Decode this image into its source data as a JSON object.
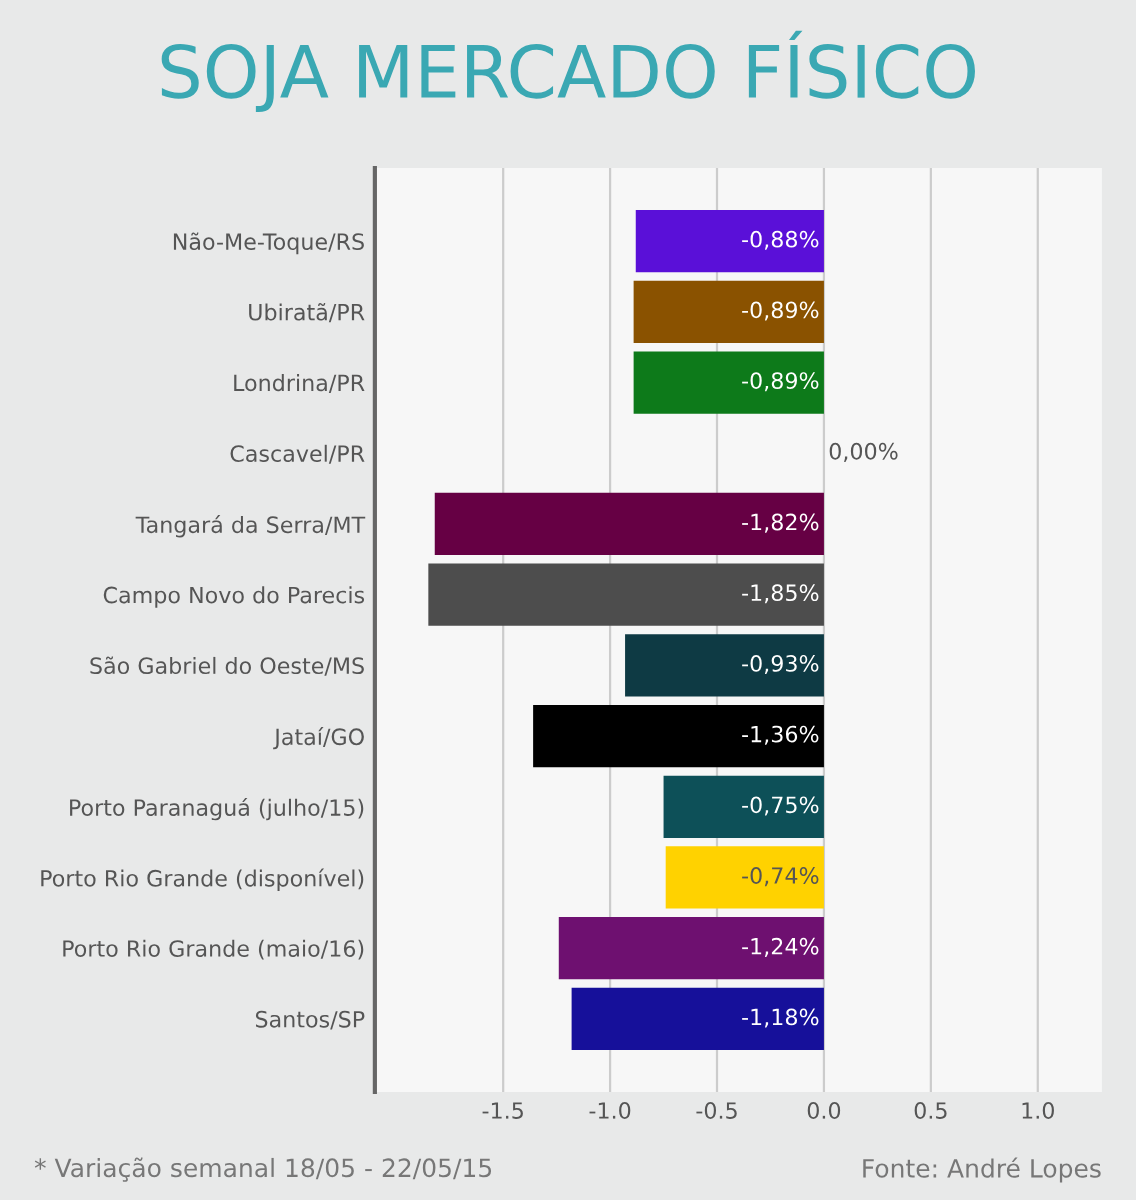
{
  "chart_data": {
    "type": "bar",
    "orientation": "horizontal",
    "title": "SOJA MERCADO FÍSICO",
    "categories": [
      "Não-Me-Toque/RS",
      "Ubiratã/PR",
      "Londrina/PR",
      "Cascavel/PR",
      "Tangará da Serra/MT",
      "Campo Novo do Parecis",
      "São Gabriel do Oeste/MS",
      "Jataí/GO",
      "Porto Paranaguá (julho/15)",
      "Porto Rio Grande (disponível)",
      "Porto Rio Grande (maio/16)",
      "Santos/SP"
    ],
    "values": [
      -0.88,
      -0.89,
      -0.89,
      0.0,
      -1.82,
      -1.85,
      -0.93,
      -1.36,
      -0.75,
      -0.74,
      -1.24,
      -1.18
    ],
    "value_labels": [
      "-0,88%",
      "-0,89%",
      "-0,89%",
      "0,00%",
      "-1,82%",
      "-1,85%",
      "-0,93%",
      "-1,36%",
      "-0,75%",
      "-0,74%",
      "-1,24%",
      "-1,18%"
    ],
    "colors": [
      "#5a10d8",
      "#8a5200",
      "#0d7a1a",
      "#888888",
      "#660044",
      "#4d4d4d",
      "#0e3a44",
      "#000000",
      "#0d5058",
      "#ffd200",
      "#6e1070",
      "#16109a"
    ],
    "xlim": [
      -2.1,
      1.3
    ],
    "xticks": [
      {
        "value": -1.5,
        "label": "-1.5"
      },
      {
        "value": -1.0,
        "label": "-1.0"
      },
      {
        "value": -0.5,
        "label": "-0.5"
      },
      {
        "value": 0.0,
        "label": "0.0"
      },
      {
        "value": 0.5,
        "label": "0.5"
      },
      {
        "value": 1.0,
        "label": "1.0"
      }
    ],
    "grid": "x",
    "annotations": [
      "* Variação semanal 18/05 - 22/05/15",
      "Fonte: André Lopes"
    ]
  }
}
